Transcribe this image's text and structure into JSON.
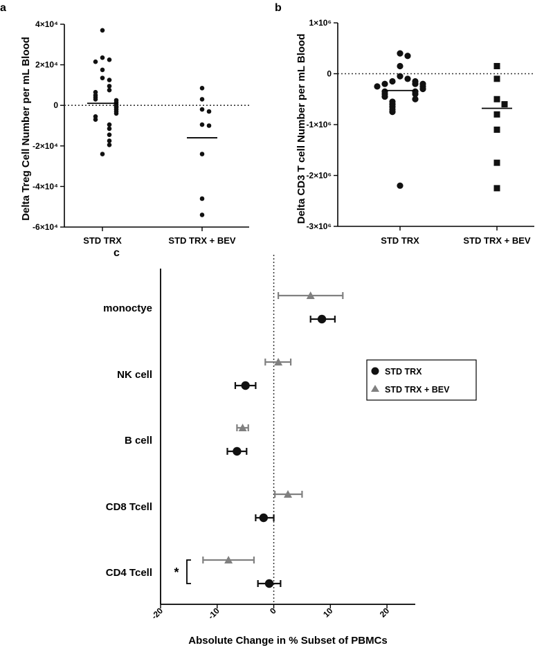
{
  "chart_data": [
    {
      "panel_label": "a",
      "type": "scatter",
      "ylabel": "Delta Treg Cell Number per mL Blood",
      "ylim": [
        -60000,
        40000
      ],
      "yticks": [
        40000,
        20000,
        0,
        -20000,
        -40000,
        -60000
      ],
      "ytick_labels": [
        "4×10⁴",
        "2×10⁴",
        "0",
        "-2×10⁴",
        "-4×10⁴",
        "-6×10⁴"
      ],
      "categories": [
        "STD TRX",
        "STD TRX + BEV"
      ],
      "reference_line": 0,
      "series": [
        {
          "name": "STD TRX",
          "marker": "circle",
          "values": [
            37000,
            23500,
            22500,
            21500,
            17500,
            13500,
            12500,
            9500,
            7500,
            6500,
            5000,
            4000,
            3000,
            2500,
            1500,
            500,
            -500,
            -1000,
            -2000,
            -3000,
            -4000,
            -5500,
            -7000,
            -9500,
            -11500,
            -14500,
            -17500,
            -19500,
            -24000
          ],
          "median": 1000
        },
        {
          "name": "STD TRX + BEV",
          "marker": "circle",
          "values": [
            8500,
            3000,
            -2000,
            -3000,
            -9500,
            -10000,
            -24000,
            -46000,
            -54000
          ],
          "median": -16000
        }
      ]
    },
    {
      "panel_label": "b",
      "type": "scatter",
      "ylabel": "Delta CD3 T cell Number per mL Blood",
      "ylim": [
        -3000000,
        1000000
      ],
      "yticks": [
        1000000,
        0,
        -1000000,
        -2000000,
        -3000000
      ],
      "ytick_labels": [
        "1×10⁶",
        "0",
        "-1×10⁶",
        "-2×10⁶",
        "-3×10⁶"
      ],
      "categories": [
        "STD TRX",
        "STD TRX + BEV"
      ],
      "reference_line": 0,
      "series": [
        {
          "name": "STD TRX",
          "marker": "circle",
          "values": [
            400000,
            350000,
            150000,
            -50000,
            -100000,
            -150000,
            -150000,
            -200000,
            -200000,
            -200000,
            -250000,
            -250000,
            -300000,
            -350000,
            -350000,
            -400000,
            -400000,
            -450000,
            -500000,
            -550000,
            -600000,
            -650000,
            -700000,
            -750000,
            -2200000
          ],
          "median": -330000
        },
        {
          "name": "STD TRX + BEV",
          "marker": "square",
          "values": [
            150000,
            -100000,
            -500000,
            -600000,
            -800000,
            -1100000,
            -1750000,
            -2250000
          ],
          "median": -680000
        }
      ]
    },
    {
      "panel_label": "c",
      "type": "scatter",
      "xlabel": "Absolute Change in % Subset of PBMCs",
      "xlim": [
        -20,
        25
      ],
      "xticks": [
        -20,
        -10,
        0,
        10,
        20
      ],
      "xtick_labels": [
        "-20",
        "-10",
        "0",
        "10",
        "20"
      ],
      "categories": [
        "monoctye",
        "NK cell",
        "B cell",
        "CD8 Tcell",
        "CD4 Tcell"
      ],
      "reference_line": 0,
      "legend": {
        "position": "right",
        "entries": [
          {
            "label": "STD TRX",
            "marker": "circle",
            "color": "#111111"
          },
          {
            "label": "STD TRX + BEV",
            "marker": "triangle",
            "color": "#808080"
          }
        ]
      },
      "significance_label": "*",
      "series": [
        {
          "name": "STD TRX",
          "color": "#111111",
          "marker": "circle",
          "means": [
            8.5,
            -5.0,
            -6.5,
            -1.8,
            -0.8
          ],
          "err_low": [
            6.5,
            -6.8,
            -8.2,
            -3.2,
            -2.8
          ],
          "err_high": [
            10.8,
            -3.2,
            -4.8,
            0.0,
            1.2
          ]
        },
        {
          "name": "STD TRX + BEV",
          "color": "#808080",
          "marker": "triangle",
          "means": [
            6.5,
            0.8,
            -5.5,
            2.5,
            -8.0
          ],
          "err_low": [
            0.8,
            -1.5,
            -6.5,
            0.2,
            -12.5
          ],
          "err_high": [
            12.2,
            3.0,
            -4.5,
            5.0,
            -3.5
          ]
        }
      ]
    }
  ]
}
